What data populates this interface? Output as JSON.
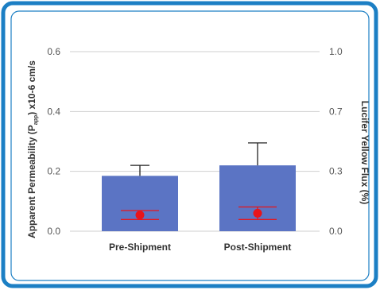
{
  "chart_data": {
    "type": "bar",
    "categories": [
      "Pre-Shipment",
      "Post-Shipment"
    ],
    "series": [
      {
        "axis": "left",
        "kind": "bar",
        "values": [
          0.185,
          0.22
        ],
        "error_upper": [
          0.035,
          0.075
        ]
      },
      {
        "axis": "right",
        "kind": "point",
        "values": [
          0.09,
          0.1
        ],
        "error": [
          0.025,
          0.035
        ]
      }
    ],
    "left_axis": {
      "label_prefix": "Apparent Permeability (P",
      "label_sub": "app",
      "label_suffix": ") x10-6 cm/s",
      "ticks": [
        "0.0",
        "0.2",
        "0.4",
        "0.6"
      ],
      "ylim": [
        0,
        0.6
      ]
    },
    "right_axis": {
      "label": "Lucifer Yellow Flux (%)",
      "ticks": [
        "0.0",
        "0.3",
        "0.7",
        "1.0"
      ],
      "ylim": [
        0,
        1.0
      ]
    },
    "grid": true,
    "colors": {
      "bar": "#5b74c4",
      "point": "#e8141a",
      "frame": "#1c7fc4",
      "grid": "#cfcfcf",
      "error_bar": "#222222"
    }
  }
}
